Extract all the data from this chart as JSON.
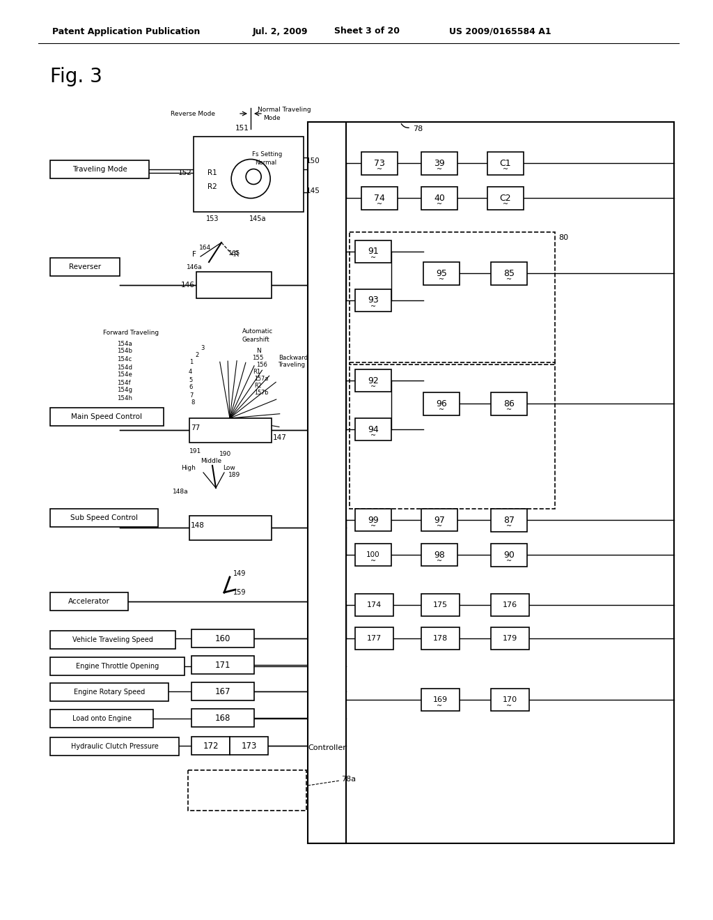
{
  "header_left": "Patent Application Publication",
  "header_mid1": "Jul. 2, 2009",
  "header_mid2": "Sheet 3 of 20",
  "header_right": "US 2009/0165584 A1",
  "fig_label": "Fig. 3",
  "bg_color": "#ffffff"
}
